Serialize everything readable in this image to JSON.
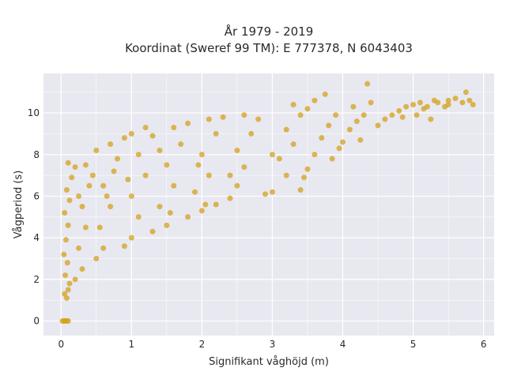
{
  "chart_data": {
    "type": "scatter",
    "title_lines": [
      "År 1979 - 2019",
      "Koordinat (Sweref 99 TM): E 777378, N 6043403"
    ],
    "xlabel": "Signifikant våghöjd (m)",
    "ylabel": "Vågperiod (s)",
    "xlim": [
      -0.25,
      6.15
    ],
    "ylim": [
      -0.7,
      11.9
    ],
    "xticks": [
      0,
      1,
      2,
      3,
      4,
      5,
      6
    ],
    "yticks": [
      0,
      2,
      4,
      6,
      8,
      10
    ],
    "grid": true,
    "colors": {
      "background": "#e8e8f0",
      "grid": "#ffffff",
      "marker": "#d4a11d"
    },
    "series": [
      {
        "points": [
          [
            0.02,
            0.0
          ],
          [
            0.04,
            0.0
          ],
          [
            0.06,
            0.0
          ],
          [
            0.08,
            0.0
          ],
          [
            0.1,
            0.0
          ],
          [
            0.05,
            1.3
          ],
          [
            0.08,
            1.1
          ],
          [
            0.1,
            1.5
          ],
          [
            0.12,
            1.8
          ],
          [
            0.06,
            2.2
          ],
          [
            0.09,
            2.8
          ],
          [
            0.04,
            3.2
          ],
          [
            0.07,
            3.9
          ],
          [
            0.1,
            4.6
          ],
          [
            0.05,
            5.2
          ],
          [
            0.12,
            5.8
          ],
          [
            0.08,
            6.3
          ],
          [
            0.15,
            6.9
          ],
          [
            0.2,
            7.4
          ],
          [
            0.1,
            7.6
          ],
          [
            0.2,
            2.0
          ],
          [
            0.3,
            2.5
          ],
          [
            0.25,
            3.5
          ],
          [
            0.35,
            4.5
          ],
          [
            0.3,
            5.5
          ],
          [
            0.4,
            6.5
          ],
          [
            0.35,
            7.5
          ],
          [
            0.5,
            8.2
          ],
          [
            0.45,
            7.0
          ],
          [
            0.25,
            6.0
          ],
          [
            0.5,
            3.0
          ],
          [
            0.6,
            3.5
          ],
          [
            0.55,
            4.5
          ],
          [
            0.7,
            5.5
          ],
          [
            0.6,
            6.5
          ],
          [
            0.8,
            7.8
          ],
          [
            0.7,
            8.5
          ],
          [
            0.9,
            8.8
          ],
          [
            0.75,
            7.2
          ],
          [
            0.65,
            6.0
          ],
          [
            0.9,
            3.6
          ],
          [
            1.0,
            4.0
          ],
          [
            1.1,
            5.0
          ],
          [
            1.0,
            6.0
          ],
          [
            1.2,
            7.0
          ],
          [
            1.1,
            8.0
          ],
          [
            1.3,
            8.9
          ],
          [
            1.2,
            9.3
          ],
          [
            1.0,
            9.0
          ],
          [
            0.95,
            6.8
          ],
          [
            1.3,
            4.3
          ],
          [
            1.5,
            4.6
          ],
          [
            1.4,
            5.5
          ],
          [
            1.6,
            6.5
          ],
          [
            1.5,
            7.5
          ],
          [
            1.7,
            8.5
          ],
          [
            1.6,
            9.3
          ],
          [
            1.8,
            9.5
          ],
          [
            1.4,
            8.2
          ],
          [
            1.55,
            5.2
          ],
          [
            1.8,
            5.0
          ],
          [
            2.0,
            5.3
          ],
          [
            1.9,
            6.2
          ],
          [
            2.1,
            7.0
          ],
          [
            2.0,
            8.0
          ],
          [
            2.2,
            9.0
          ],
          [
            2.1,
            9.7
          ],
          [
            2.3,
            9.8
          ],
          [
            1.95,
            7.5
          ],
          [
            2.05,
            5.6
          ],
          [
            2.2,
            5.6
          ],
          [
            2.4,
            5.9
          ],
          [
            2.5,
            6.5
          ],
          [
            2.6,
            7.4
          ],
          [
            2.5,
            8.2
          ],
          [
            2.7,
            9.0
          ],
          [
            2.8,
            9.7
          ],
          [
            2.6,
            9.9
          ],
          [
            2.4,
            7.0
          ],
          [
            2.9,
            6.1
          ],
          [
            3.0,
            6.2
          ],
          [
            3.2,
            7.0
          ],
          [
            3.1,
            7.8
          ],
          [
            3.3,
            8.5
          ],
          [
            3.2,
            9.2
          ],
          [
            3.4,
            9.9
          ],
          [
            3.5,
            10.2
          ],
          [
            3.3,
            10.4
          ],
          [
            3.0,
            8.0
          ],
          [
            3.4,
            6.3
          ],
          [
            3.5,
            7.3
          ],
          [
            3.6,
            8.0
          ],
          [
            3.7,
            8.8
          ],
          [
            3.8,
            9.4
          ],
          [
            3.9,
            9.9
          ],
          [
            3.6,
            10.6
          ],
          [
            3.75,
            10.9
          ],
          [
            3.45,
            6.9
          ],
          [
            3.85,
            7.8
          ],
          [
            3.95,
            8.3
          ],
          [
            4.0,
            8.6
          ],
          [
            4.1,
            9.2
          ],
          [
            4.2,
            9.6
          ],
          [
            4.3,
            9.9
          ],
          [
            4.15,
            10.3
          ],
          [
            4.4,
            10.5
          ],
          [
            4.35,
            11.4
          ],
          [
            4.25,
            8.7
          ],
          [
            4.5,
            9.4
          ],
          [
            4.6,
            9.7
          ],
          [
            4.7,
            9.9
          ],
          [
            4.8,
            10.1
          ],
          [
            4.9,
            10.3
          ],
          [
            5.0,
            10.4
          ],
          [
            4.85,
            9.8
          ],
          [
            5.1,
            10.5
          ],
          [
            5.2,
            10.3
          ],
          [
            5.25,
            9.7
          ],
          [
            5.35,
            10.5
          ],
          [
            5.5,
            10.6
          ],
          [
            5.6,
            10.7
          ],
          [
            5.7,
            10.5
          ],
          [
            5.8,
            10.6
          ],
          [
            5.75,
            11.0
          ],
          [
            5.85,
            10.4
          ],
          [
            5.5,
            10.4
          ],
          [
            5.45,
            10.3
          ],
          [
            5.3,
            10.6
          ],
          [
            5.15,
            10.2
          ],
          [
            5.05,
            9.9
          ]
        ]
      }
    ]
  }
}
